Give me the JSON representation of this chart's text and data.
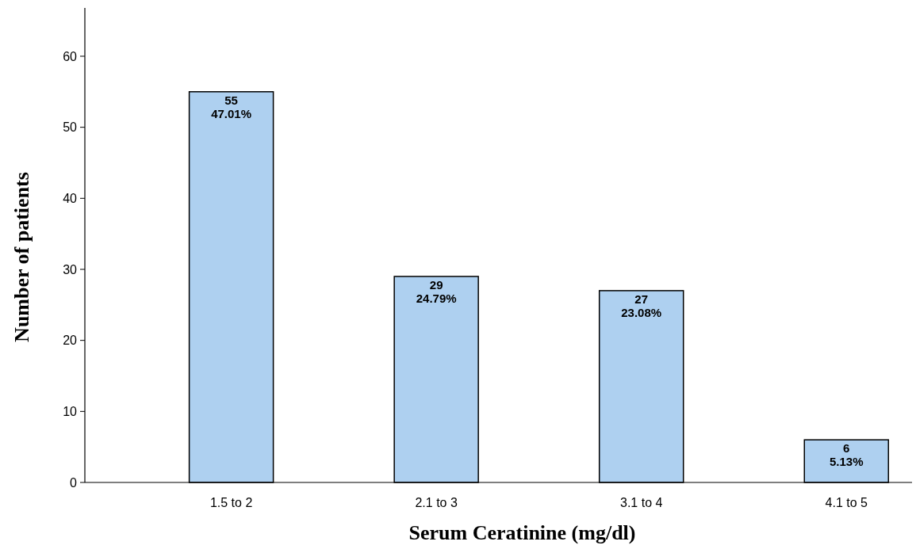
{
  "chart_data": {
    "type": "bar",
    "xlabel": "Serum Ceratinine (mg/dl)",
    "ylabel": "Number of patients",
    "categories": [
      "1.5 to 2",
      "2.1 to 3",
      "3.1 to 4",
      "4.1 to 5"
    ],
    "values": [
      55,
      29,
      27,
      6
    ],
    "value_labels": [
      "55\n47.01%",
      "29\n24.79%",
      "27\n23.08%",
      "6\n5.13%"
    ],
    "color": "#aed0f0",
    "ylim": [
      0,
      66.8
    ],
    "yticks": [
      0,
      10,
      20,
      30,
      40,
      50,
      60
    ],
    "grid": false
  }
}
